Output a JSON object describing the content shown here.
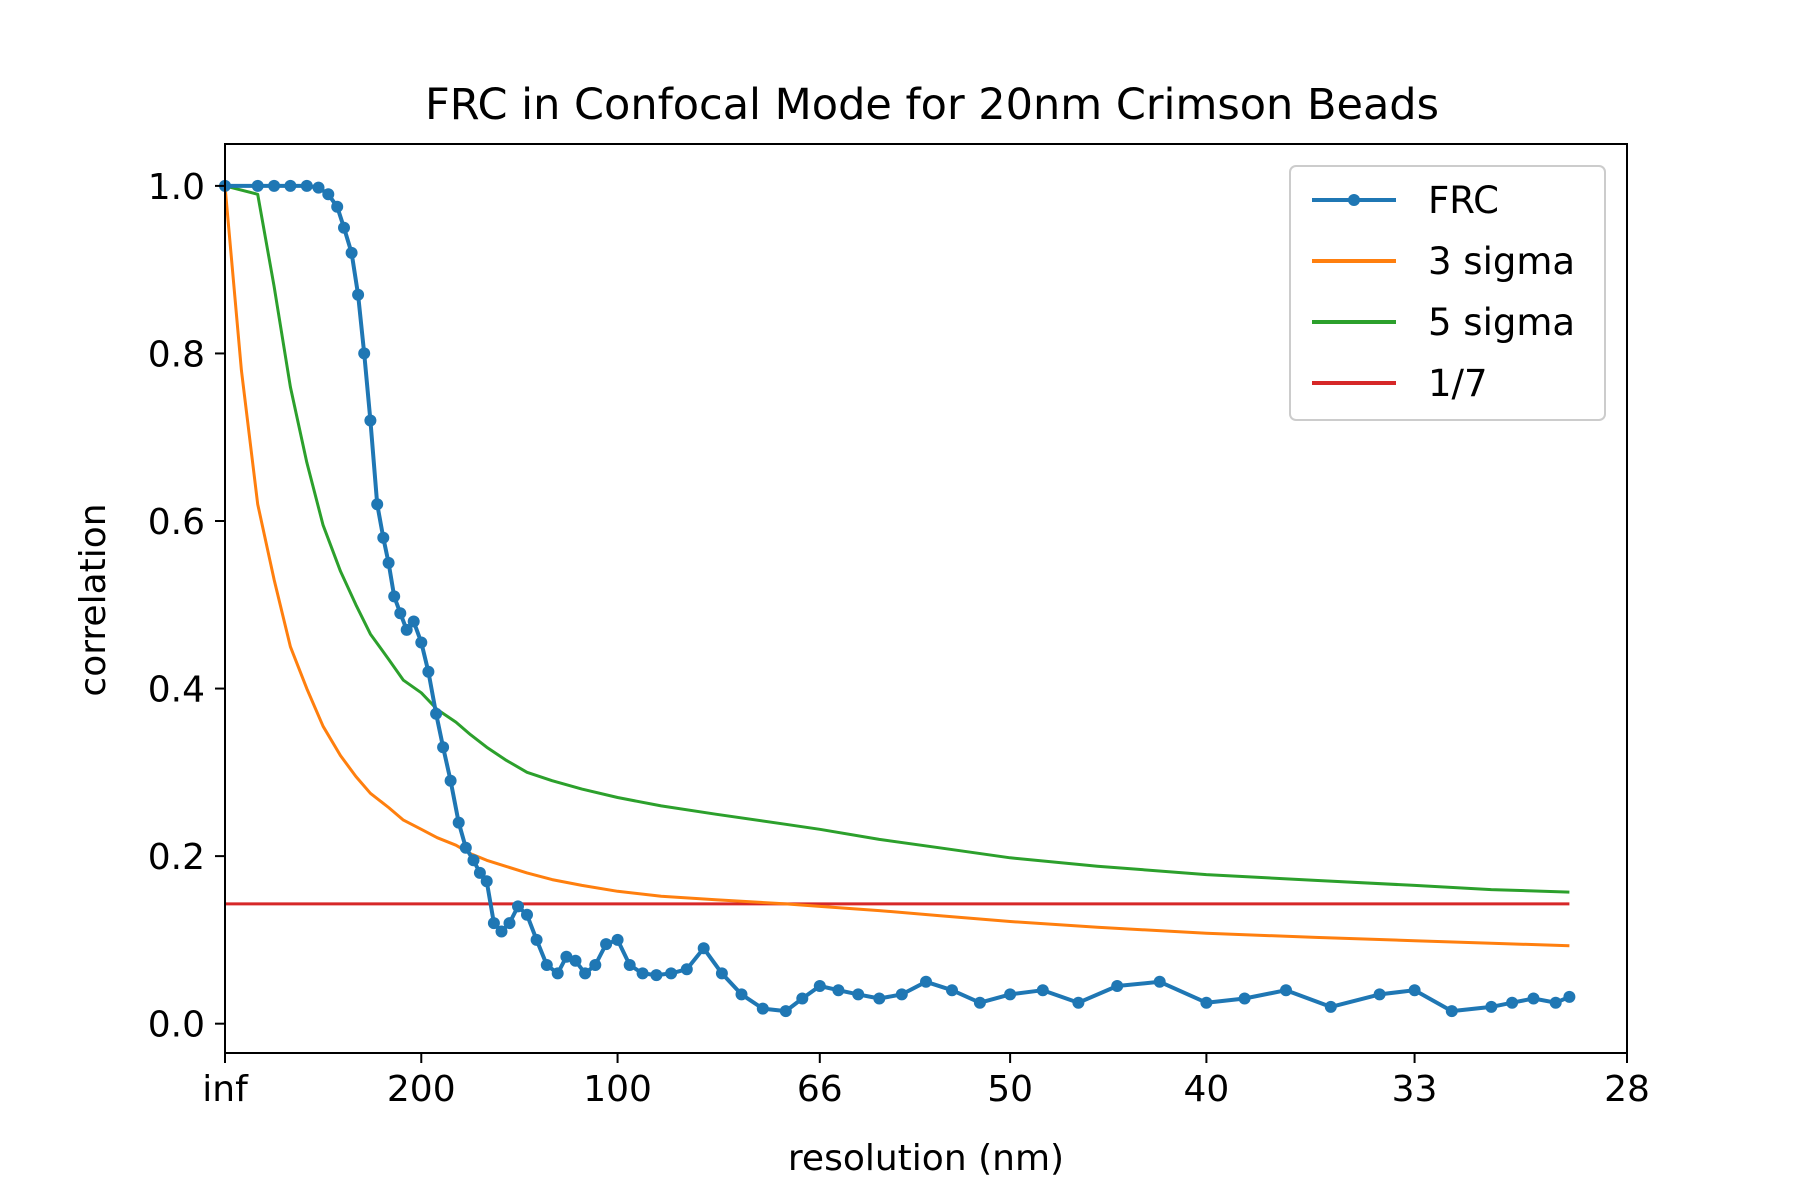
{
  "chart_data": {
    "type": "line",
    "title": "FRC in Confocal Mode for 20nm Crimson Beads",
    "xlabel": "resolution (nm)",
    "ylabel": "correlation",
    "x_scale": "reciprocal",
    "x_tick_labels": [
      "inf",
      "200",
      "100",
      "66",
      "50",
      "40",
      "33",
      "28"
    ],
    "x_ticks": [
      null,
      200,
      100,
      66,
      50,
      40,
      33,
      28
    ],
    "xlim": [
      null,
      28
    ],
    "ylim": [
      -0.035,
      1.05
    ],
    "y_ticks": [
      0.0,
      0.2,
      0.4,
      0.6,
      0.8,
      1.0
    ],
    "y_tick_labels": [
      "0.0",
      "0.2",
      "0.4",
      "0.6",
      "0.8",
      "1.0"
    ],
    "grid": false,
    "legend_position": "top-right",
    "series": [
      {
        "name": "FRC",
        "color": "#1f77b4",
        "marker": "dot",
        "x": [
          "inf",
          1200,
          800,
          600,
          480,
          420,
          380,
          350,
          330,
          310,
          295,
          282,
          270,
          258,
          248,
          240,
          232,
          224,
          216,
          208,
          200,
          193,
          186,
          180,
          174,
          168,
          163,
          158,
          154,
          150,
          146,
          142,
          138,
          134,
          130,
          126,
          122,
          118,
          115,
          112,
          109,
          106,
          103,
          100,
          97,
          94,
          91,
          88,
          85,
          82,
          79,
          76,
          73,
          70,
          68,
          66,
          64,
          62,
          60,
          58,
          56,
          54,
          52,
          50,
          48,
          46,
          44,
          42,
          40,
          38.5,
          37,
          35.5,
          34,
          33,
          32,
          31,
          30.5,
          30,
          29.5,
          29.2
        ],
        "y": [
          1.0,
          1.0,
          1.0,
          1.0,
          1.0,
          0.998,
          0.99,
          0.975,
          0.95,
          0.92,
          0.87,
          0.8,
          0.72,
          0.62,
          0.58,
          0.55,
          0.51,
          0.49,
          0.47,
          0.48,
          0.455,
          0.42,
          0.37,
          0.33,
          0.29,
          0.24,
          0.21,
          0.195,
          0.18,
          0.17,
          0.12,
          0.11,
          0.12,
          0.14,
          0.13,
          0.1,
          0.07,
          0.06,
          0.08,
          0.075,
          0.06,
          0.07,
          0.095,
          0.1,
          0.07,
          0.06,
          0.058,
          0.06,
          0.065,
          0.09,
          0.06,
          0.035,
          0.018,
          0.015,
          0.03,
          0.045,
          0.04,
          0.035,
          0.03,
          0.035,
          0.05,
          0.04,
          0.025,
          0.035,
          0.04,
          0.025,
          0.045,
          0.05,
          0.025,
          0.03,
          0.04,
          0.02,
          0.035,
          0.04,
          0.015,
          0.02,
          0.025,
          0.03,
          0.025,
          0.032
        ]
      },
      {
        "name": "3 sigma",
        "color": "#ff7f0e",
        "marker": "none",
        "x": [
          "inf",
          2400,
          1200,
          800,
          600,
          480,
          400,
          340,
          300,
          270,
          240,
          220,
          200,
          185,
          170,
          160,
          150,
          140,
          130,
          120,
          110,
          100,
          90,
          80,
          70,
          66,
          60,
          55,
          50,
          45,
          40,
          36,
          33,
          31,
          29.2
        ],
        "y": [
          1.0,
          0.78,
          0.62,
          0.53,
          0.45,
          0.4,
          0.355,
          0.32,
          0.295,
          0.275,
          0.258,
          0.243,
          0.232,
          0.222,
          0.213,
          0.203,
          0.195,
          0.188,
          0.18,
          0.172,
          0.165,
          0.158,
          0.152,
          0.148,
          0.143,
          0.14,
          0.135,
          0.129,
          0.122,
          0.115,
          0.108,
          0.103,
          0.099,
          0.096,
          0.093
        ]
      },
      {
        "name": "5 sigma",
        "color": "#2ca02c",
        "marker": "none",
        "x": [
          "inf",
          1200,
          800,
          600,
          480,
          400,
          340,
          300,
          270,
          240,
          220,
          200,
          185,
          170,
          160,
          150,
          140,
          130,
          120,
          110,
          100,
          90,
          80,
          70,
          66,
          60,
          55,
          50,
          45,
          40,
          36,
          33,
          31,
          29.2
        ],
        "y": [
          1.0,
          0.99,
          0.88,
          0.76,
          0.67,
          0.595,
          0.54,
          0.5,
          0.465,
          0.435,
          0.41,
          0.395,
          0.375,
          0.36,
          0.345,
          0.33,
          0.315,
          0.3,
          0.29,
          0.28,
          0.27,
          0.26,
          0.25,
          0.238,
          0.232,
          0.22,
          0.21,
          0.198,
          0.188,
          0.178,
          0.171,
          0.165,
          0.16,
          0.157
        ]
      },
      {
        "name": "1/7",
        "color": "#d62728",
        "marker": "none",
        "x": [
          "inf",
          29.2
        ],
        "y": [
          0.143,
          0.143
        ]
      }
    ]
  }
}
